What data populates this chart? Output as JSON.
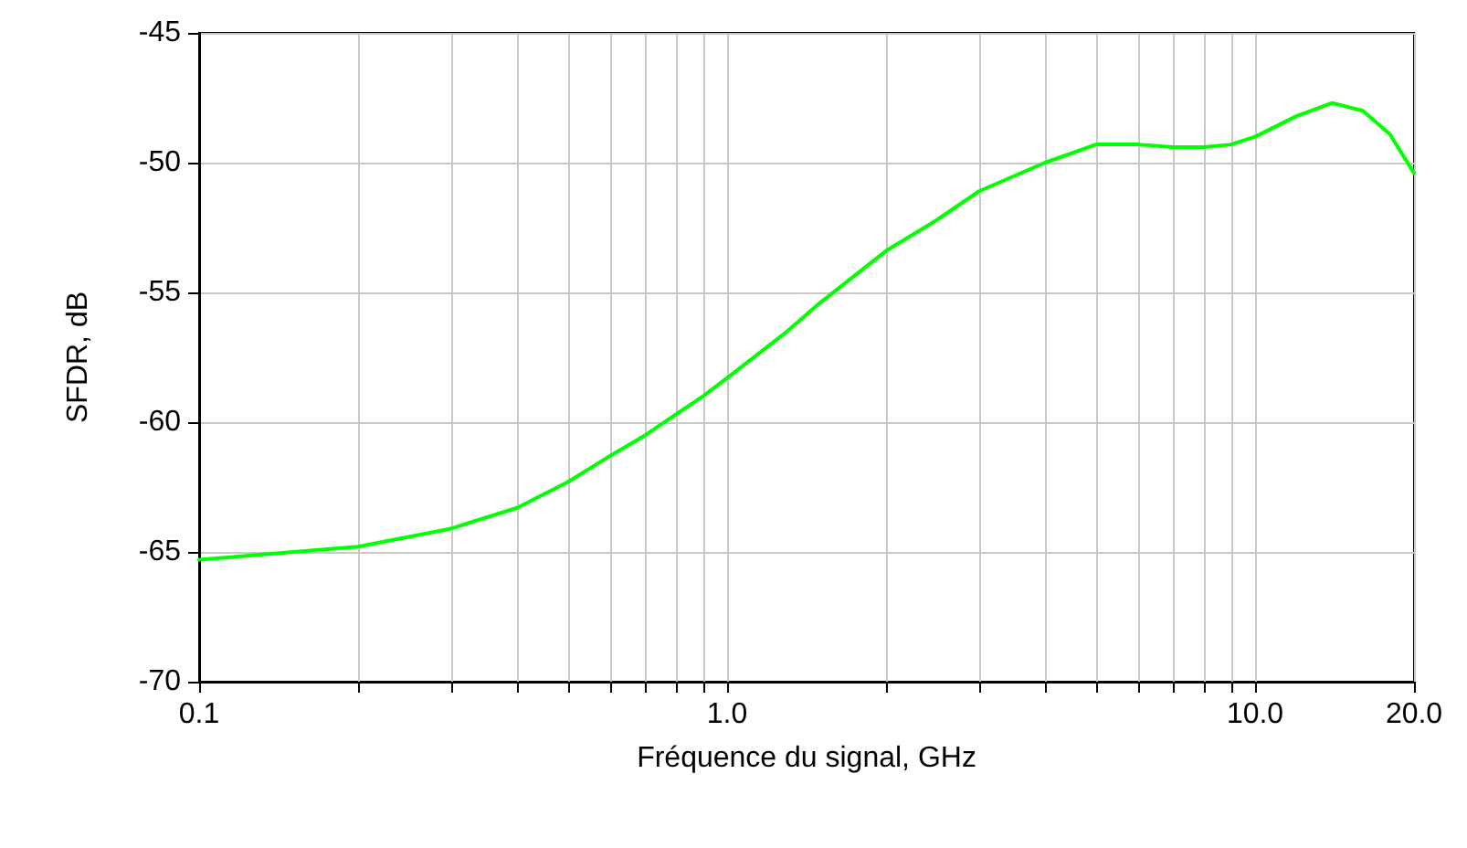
{
  "chart_data": {
    "type": "line",
    "xlabel": "Fréquence du signal, GHz",
    "ylabel": "SFDR, dB",
    "log": "x",
    "grid": true,
    "line_style": "solid",
    "marker": "none",
    "xlim": [
      0.1,
      20
    ],
    "ylim": [
      -70,
      -45
    ],
    "xticks": [
      0.1,
      {
        "value": 0.2,
        "label": null
      },
      {
        "value": 0.3,
        "label": null
      },
      {
        "value": 0.4,
        "label": null
      },
      {
        "value": 0.5,
        "label": null
      },
      {
        "value": 0.6,
        "label": null
      },
      {
        "value": 0.7,
        "label": null
      },
      {
        "value": 0.8,
        "label": null
      },
      {
        "value": 0.9,
        "label": null
      },
      {
        "value": 1,
        "label": "1.0"
      },
      {
        "value": 2,
        "label": null
      },
      {
        "value": 3,
        "label": null
      },
      {
        "value": 4,
        "label": null
      },
      {
        "value": 5,
        "label": null
      },
      {
        "value": 6,
        "label": null
      },
      {
        "value": 7,
        "label": null
      },
      {
        "value": 8,
        "label": null
      },
      {
        "value": 9,
        "label": null
      },
      {
        "value": 10,
        "label": "10.0"
      },
      {
        "value": 20,
        "label": "20.0"
      }
    ],
    "yticks": [
      -70,
      -65,
      -60,
      -55,
      -50,
      -45
    ],
    "series": [
      {
        "color": "#00ff00",
        "x": [
          0.1,
          0.2,
          0.3,
          0.4,
          0.5,
          0.6,
          0.7,
          0.8,
          0.9,
          1,
          1.3,
          1.5,
          2,
          2.5,
          3,
          4,
          5,
          6,
          7,
          8,
          9,
          10,
          12,
          14,
          16,
          18,
          20
        ],
        "values": [
          -65.3,
          -64.8,
          -64.1,
          -63.3,
          -62.3,
          -61.3,
          -60.5,
          -59.7,
          -59.0,
          -58.3,
          -56.5,
          -55.4,
          -53.4,
          -52.2,
          -51.1,
          -50.0,
          -49.3,
          -49.3,
          -49.4,
          -49.4,
          -49.3,
          -49.0,
          -48.2,
          -47.7,
          -48.0,
          -48.9,
          -50.4
        ]
      }
    ]
  }
}
